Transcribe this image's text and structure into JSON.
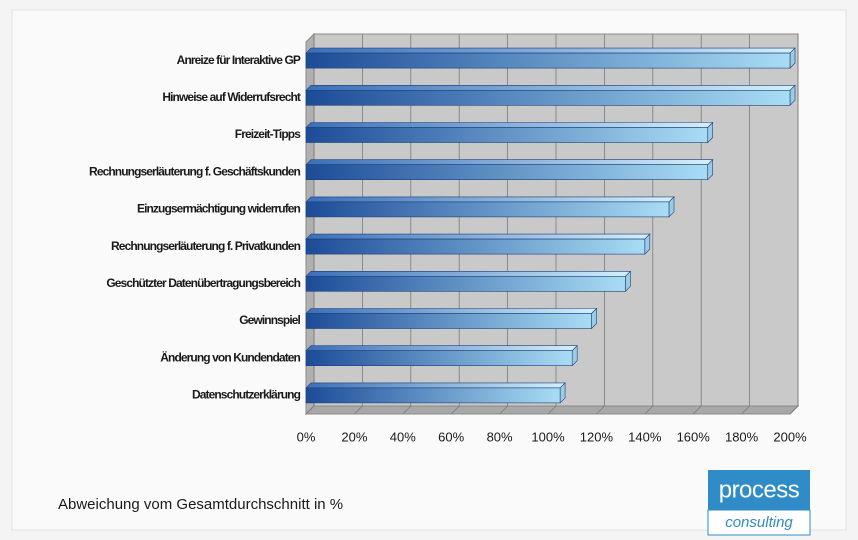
{
  "chart_data": {
    "type": "bar3d",
    "categories": [
      "Anreize für Interaktive GP",
      "Hinweise auf Widerrufsrecht",
      "Freizeit-Tipps",
      "Rechnungserläuterung f. Geschäftskunden",
      "Einzugsermächtigung widerrufen",
      "Rechnungserläuterung f. Privatkunden",
      "Geschützter Datenübertragungsbereich",
      "Gewinnspiel",
      "Änderung von Kundendaten",
      "Datenschutzerklärung"
    ],
    "values": [
      200,
      200,
      166,
      166,
      150,
      140,
      132,
      118,
      110,
      105
    ],
    "color": "#2a63b0",
    "xlim": [
      0,
      200
    ],
    "xticks": [
      {
        "value": 0,
        "label": "0%"
      },
      {
        "value": 20,
        "label": "20%"
      },
      {
        "value": 40,
        "label": "40%"
      },
      {
        "value": 60,
        "label": "60%"
      },
      {
        "value": 80,
        "label": "80%"
      },
      {
        "value": 100,
        "label": "100%"
      },
      {
        "value": 120,
        "label": "120%"
      },
      {
        "value": 140,
        "label": "140%"
      },
      {
        "value": 160,
        "label": "160%"
      },
      {
        "value": 180,
        "label": "180%"
      },
      {
        "value": 200,
        "label": "200%"
      }
    ],
    "grid": true,
    "annotation": "Abweichung vom Gesamtdurchschnitt in %",
    "logo": {
      "top": "process",
      "bottom": "consulting"
    }
  }
}
